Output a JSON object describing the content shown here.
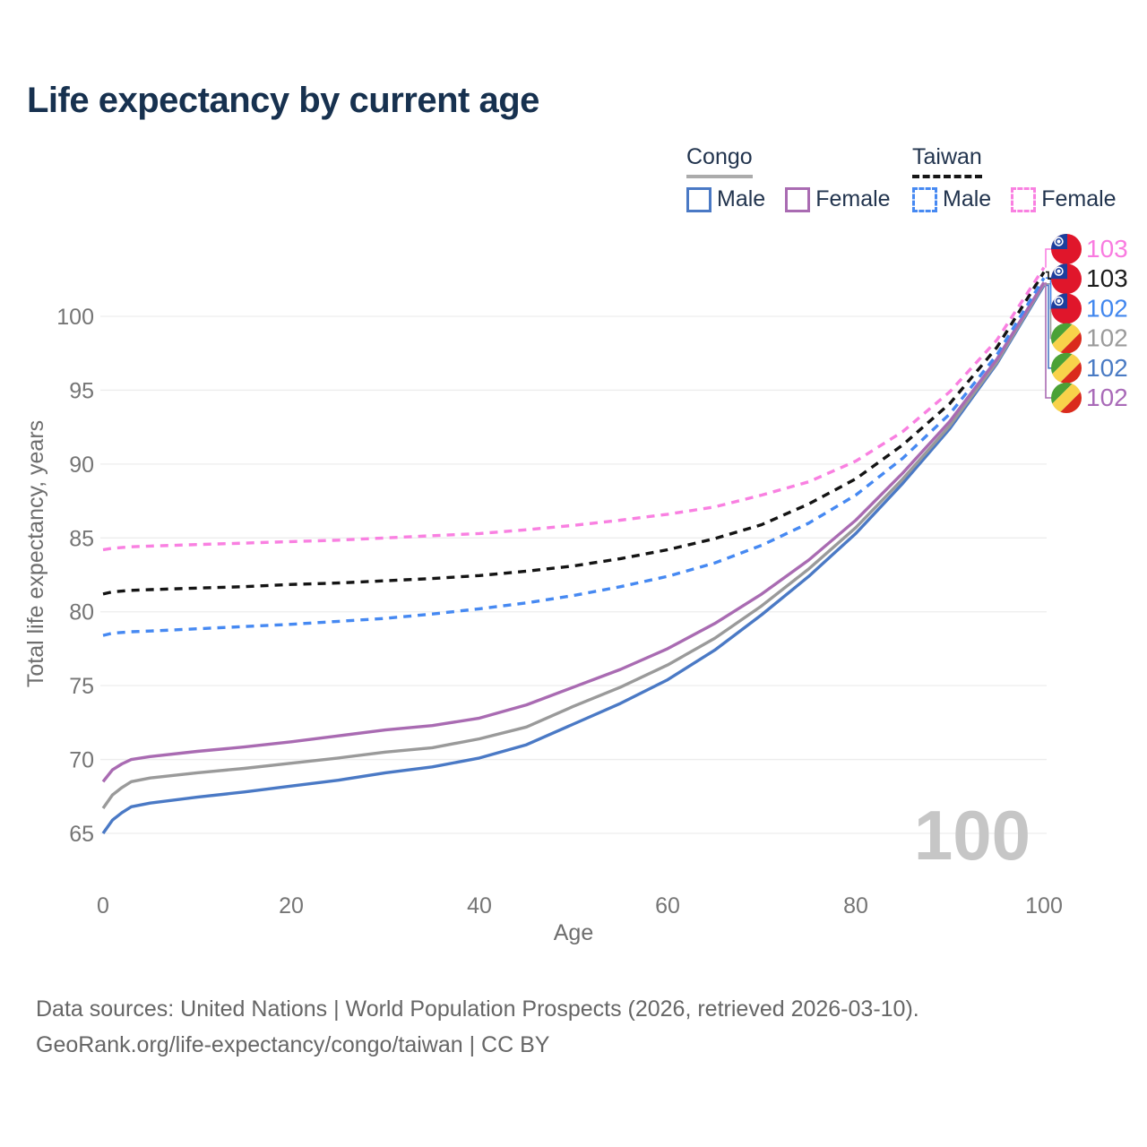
{
  "header": {
    "title": "Life expectancy by current age"
  },
  "colors": {
    "title": "#17314f",
    "text": "#22344e",
    "tick": "#757575",
    "axis_label": "#6e6e6e",
    "footer": "#666666",
    "watermark": "#c6c6c6",
    "grid": "#ededed"
  },
  "legend": {
    "groups": [
      {
        "label": "Congo",
        "line_style": "solid",
        "underline_color": "#ababab",
        "items": [
          {
            "label": "Male",
            "color": "#4a79c5",
            "dashed": false
          },
          {
            "label": "Female",
            "color": "#a96bb2",
            "dashed": false
          }
        ]
      },
      {
        "label": "Taiwan",
        "line_style": "dashed",
        "underline_color": "#161616",
        "items": [
          {
            "label": "Male",
            "color": "#4689f2",
            "dashed": true
          },
          {
            "label": "Female",
            "color": "#f980e1",
            "dashed": true
          }
        ]
      }
    ]
  },
  "flags": {
    "taiwan": {
      "field": "#e0162b",
      "canton": "#1c3f9e",
      "sun": "#ffffff"
    },
    "congo": {
      "green": "#4ba136",
      "yellow": "#f8d24a",
      "red": "#da2a1c"
    }
  },
  "chart_data": {
    "type": "line",
    "title": "Life expectancy by current age",
    "xlabel": "Age",
    "ylabel": "Total life expectancy, years",
    "xlim": [
      0,
      100
    ],
    "ylim": [
      65,
      100
    ],
    "xticks": [
      0,
      20,
      40,
      60,
      80,
      100
    ],
    "yticks": [
      65,
      70,
      75,
      80,
      85,
      90,
      95,
      100
    ],
    "grid": "horizontal-only",
    "legend_position": "top-right",
    "watermark": "100",
    "series": [
      {
        "id": "congo_male",
        "name": "Congo Male",
        "country": "congo",
        "sex": "male",
        "color": "#4a79c5",
        "dashed": false,
        "row": 4,
        "end_label": "102",
        "label_color": "#4a7bc4",
        "points": [
          [
            0,
            65.0
          ],
          [
            1,
            65.9
          ],
          [
            2,
            66.4
          ],
          [
            3,
            66.8
          ],
          [
            5,
            67.05
          ],
          [
            10,
            67.45
          ],
          [
            15,
            67.8
          ],
          [
            20,
            68.2
          ],
          [
            25,
            68.6
          ],
          [
            30,
            69.1
          ],
          [
            35,
            69.5
          ],
          [
            40,
            70.1
          ],
          [
            45,
            71.0
          ],
          [
            50,
            72.4
          ],
          [
            55,
            73.8
          ],
          [
            60,
            75.4
          ],
          [
            65,
            77.4
          ],
          [
            70,
            79.8
          ],
          [
            75,
            82.4
          ],
          [
            80,
            85.3
          ],
          [
            85,
            88.7
          ],
          [
            90,
            92.4
          ],
          [
            95,
            96.8
          ],
          [
            100,
            102.1
          ]
        ]
      },
      {
        "id": "congo_total",
        "name": "Congo Both sexes",
        "country": "congo",
        "sex": "both",
        "color": "#9a9a9a",
        "dashed": false,
        "row": 3,
        "end_label": "102",
        "label_color": "#9b9b9b",
        "points": [
          [
            0,
            66.7
          ],
          [
            1,
            67.6
          ],
          [
            2,
            68.1
          ],
          [
            3,
            68.5
          ],
          [
            5,
            68.75
          ],
          [
            10,
            69.1
          ],
          [
            15,
            69.4
          ],
          [
            20,
            69.75
          ],
          [
            25,
            70.1
          ],
          [
            30,
            70.5
          ],
          [
            35,
            70.8
          ],
          [
            40,
            71.4
          ],
          [
            45,
            72.2
          ],
          [
            50,
            73.6
          ],
          [
            55,
            74.9
          ],
          [
            60,
            76.4
          ],
          [
            65,
            78.2
          ],
          [
            70,
            80.4
          ],
          [
            75,
            82.9
          ],
          [
            80,
            85.7
          ],
          [
            85,
            89.0
          ],
          [
            90,
            92.6
          ],
          [
            95,
            96.9
          ],
          [
            100,
            102.2
          ]
        ]
      },
      {
        "id": "congo_female",
        "name": "Congo Female",
        "country": "congo",
        "sex": "female",
        "color": "#a96bb2",
        "dashed": false,
        "row": 5,
        "end_label": "102",
        "label_color": "#a96ab8",
        "points": [
          [
            0,
            68.5
          ],
          [
            1,
            69.3
          ],
          [
            2,
            69.7
          ],
          [
            3,
            70.0
          ],
          [
            5,
            70.2
          ],
          [
            10,
            70.55
          ],
          [
            15,
            70.85
          ],
          [
            20,
            71.2
          ],
          [
            25,
            71.6
          ],
          [
            30,
            72.0
          ],
          [
            35,
            72.3
          ],
          [
            40,
            72.8
          ],
          [
            45,
            73.7
          ],
          [
            50,
            74.9
          ],
          [
            55,
            76.1
          ],
          [
            60,
            77.5
          ],
          [
            65,
            79.2
          ],
          [
            70,
            81.2
          ],
          [
            75,
            83.5
          ],
          [
            80,
            86.2
          ],
          [
            85,
            89.4
          ],
          [
            90,
            92.9
          ],
          [
            95,
            97.1
          ],
          [
            100,
            102.3
          ]
        ]
      },
      {
        "id": "taiwan_male",
        "name": "Taiwan Male",
        "country": "taiwan",
        "sex": "male",
        "color": "#4689f2",
        "dashed": true,
        "row": 2,
        "end_label": "102",
        "label_color": "#4287ee",
        "points": [
          [
            0,
            78.4
          ],
          [
            1,
            78.55
          ],
          [
            3,
            78.65
          ],
          [
            5,
            78.7
          ],
          [
            10,
            78.85
          ],
          [
            15,
            79.0
          ],
          [
            20,
            79.15
          ],
          [
            25,
            79.35
          ],
          [
            30,
            79.55
          ],
          [
            35,
            79.85
          ],
          [
            40,
            80.2
          ],
          [
            45,
            80.6
          ],
          [
            50,
            81.1
          ],
          [
            55,
            81.7
          ],
          [
            60,
            82.4
          ],
          [
            65,
            83.3
          ],
          [
            70,
            84.5
          ],
          [
            75,
            86.0
          ],
          [
            80,
            87.9
          ],
          [
            85,
            90.4
          ],
          [
            90,
            93.4
          ],
          [
            95,
            97.4
          ],
          [
            100,
            102.6
          ]
        ]
      },
      {
        "id": "taiwan_total",
        "name": "Taiwan Both sexes",
        "country": "taiwan",
        "sex": "both",
        "color": "#141414",
        "dashed": true,
        "row": 1,
        "end_label": "103",
        "label_color": "#1d1d1d",
        "points": [
          [
            0,
            81.2
          ],
          [
            1,
            81.35
          ],
          [
            3,
            81.45
          ],
          [
            5,
            81.5
          ],
          [
            10,
            81.6
          ],
          [
            15,
            81.7
          ],
          [
            20,
            81.85
          ],
          [
            25,
            81.95
          ],
          [
            30,
            82.1
          ],
          [
            35,
            82.25
          ],
          [
            40,
            82.45
          ],
          [
            45,
            82.75
          ],
          [
            50,
            83.1
          ],
          [
            55,
            83.6
          ],
          [
            60,
            84.2
          ],
          [
            65,
            84.95
          ],
          [
            70,
            85.9
          ],
          [
            75,
            87.3
          ],
          [
            80,
            89.0
          ],
          [
            85,
            91.3
          ],
          [
            90,
            94.1
          ],
          [
            95,
            97.9
          ],
          [
            100,
            103.0
          ]
        ]
      },
      {
        "id": "taiwan_female",
        "name": "Taiwan Female",
        "country": "taiwan",
        "sex": "female",
        "color": "#f980e1",
        "dashed": true,
        "row": 0,
        "end_label": "103",
        "label_color": "#f97be0",
        "points": [
          [
            0,
            84.2
          ],
          [
            1,
            84.3
          ],
          [
            3,
            84.4
          ],
          [
            5,
            84.45
          ],
          [
            10,
            84.55
          ],
          [
            15,
            84.65
          ],
          [
            20,
            84.75
          ],
          [
            25,
            84.85
          ],
          [
            30,
            85.0
          ],
          [
            35,
            85.15
          ],
          [
            40,
            85.3
          ],
          [
            45,
            85.55
          ],
          [
            50,
            85.85
          ],
          [
            55,
            86.2
          ],
          [
            60,
            86.6
          ],
          [
            65,
            87.1
          ],
          [
            70,
            87.9
          ],
          [
            75,
            88.8
          ],
          [
            80,
            90.2
          ],
          [
            85,
            92.2
          ],
          [
            90,
            94.9
          ],
          [
            95,
            98.4
          ],
          [
            100,
            103.3
          ]
        ]
      }
    ]
  },
  "footer": {
    "line1": "Data sources: United Nations | World Population Prospects (2026, retrieved 2026-03-10).",
    "line2": "GeoRank.org/life-expectancy/congo/taiwan | CC BY"
  }
}
